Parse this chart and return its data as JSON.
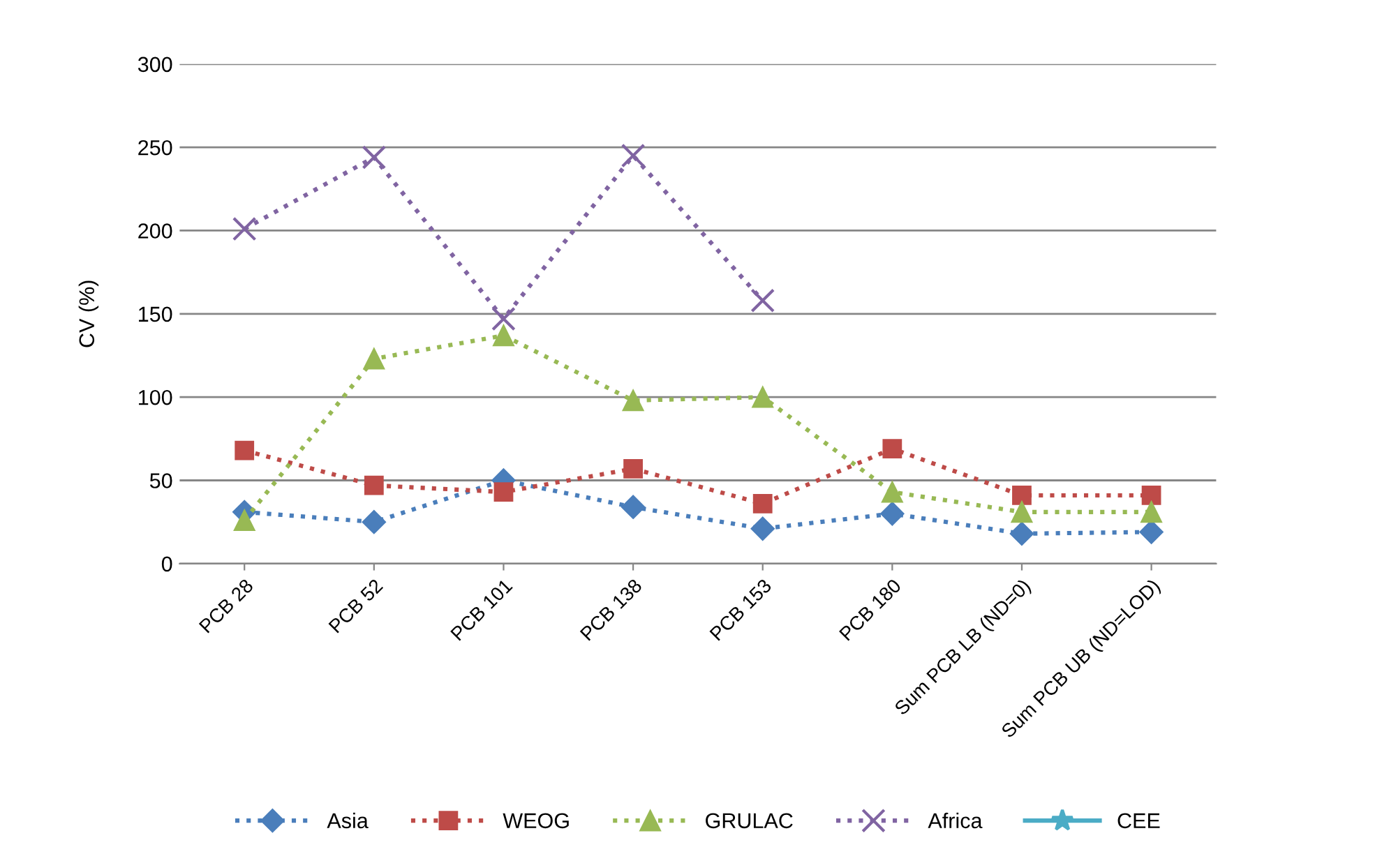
{
  "chart_data": {
    "type": "line",
    "ylabel": "CV (%)",
    "categories": [
      "PCB 28",
      "PCB 52",
      "PCB 101",
      "PCB 138",
      "PCB 153",
      "PCB 180",
      "Sum PCB LB (ND=0)",
      "Sum PCB UB (ND=LOD)"
    ],
    "series": [
      {
        "name": "Asia",
        "color": "#4a7ebb",
        "marker": "diamond",
        "line_style": "dotted",
        "values": [
          31,
          25,
          50,
          34,
          21,
          30,
          18,
          19
        ]
      },
      {
        "name": "WEOG",
        "color": "#be4b48",
        "marker": "square",
        "line_style": "dotted",
        "values": [
          68,
          47,
          43,
          57,
          36,
          69,
          41,
          41
        ]
      },
      {
        "name": "GRULAC",
        "color": "#98b954",
        "marker": "triangle",
        "line_style": "dotted",
        "values": [
          26,
          123,
          137,
          98,
          100,
          43,
          31,
          31
        ]
      },
      {
        "name": "Africa",
        "color": "#8064a2",
        "marker": "cross",
        "line_style": "dotted",
        "values": [
          201,
          244,
          147,
          245,
          158,
          null,
          null,
          null
        ]
      },
      {
        "name": "CEE",
        "color": "#4bacc6",
        "marker": "star",
        "line_style": "solid",
        "values": [
          null,
          null,
          null,
          null,
          null,
          null,
          null,
          null
        ]
      }
    ],
    "ylim": [
      0,
      300
    ],
    "yticks": [
      0,
      50,
      100,
      150,
      200,
      250,
      300
    ],
    "grid": "y",
    "legend": "bottom"
  }
}
